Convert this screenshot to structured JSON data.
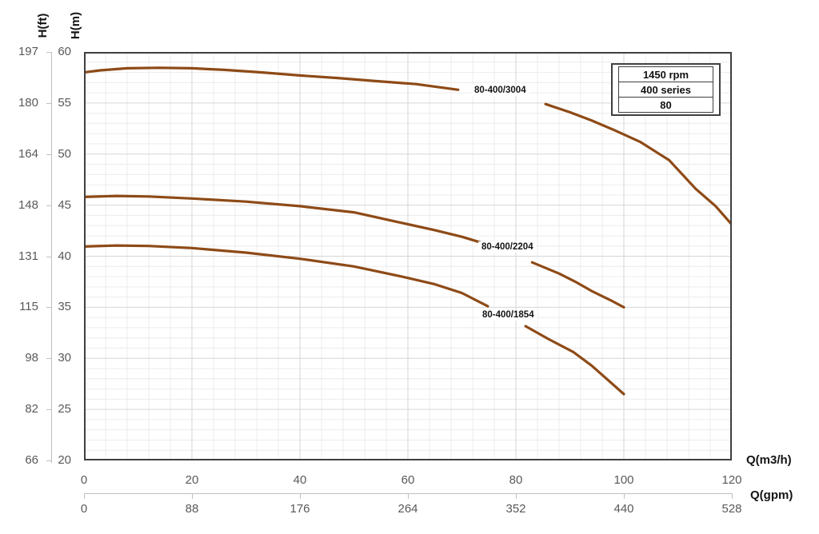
{
  "chart_data": {
    "type": "line",
    "title": "",
    "axes": {
      "y_primary": {
        "title": "H(ft)",
        "ticks": [
          197,
          180,
          164,
          148,
          131,
          115,
          98,
          82,
          66
        ]
      },
      "y_secondary": {
        "title": "H(m)",
        "ticks": [
          60,
          55,
          50,
          45,
          40,
          35,
          30,
          25,
          20
        ],
        "range": [
          20,
          60
        ],
        "major_step": 5,
        "minor_step": 1
      },
      "x_primary": {
        "title": "Q(m3/h)",
        "ticks": [
          0,
          20,
          40,
          60,
          80,
          100,
          120
        ],
        "range": [
          0,
          120
        ],
        "major_step": 20,
        "minor_step": 4
      },
      "x_secondary": {
        "title": "Q(gpm)",
        "ticks": [
          0,
          88,
          176,
          264,
          352,
          440,
          528
        ]
      }
    },
    "legend": {
      "position": "top-right",
      "rows": [
        "1450 rpm",
        "400 series",
        "80"
      ]
    },
    "grid": {
      "major": true,
      "minor": true
    },
    "series": [
      {
        "name": "80-400/3004",
        "segments": [
          [
            [
              0,
              58.0
            ],
            [
              3,
              58.2
            ],
            [
              8,
              58.4
            ],
            [
              14,
              58.45
            ],
            [
              20,
              58.4
            ],
            [
              26,
              58.25
            ],
            [
              33,
              58.0
            ],
            [
              40,
              57.7
            ],
            [
              47,
              57.45
            ],
            [
              54,
              57.15
            ],
            [
              61.5,
              56.85
            ],
            [
              69.3,
              56.3
            ]
          ],
          [
            [
              85.5,
              54.9
            ],
            [
              90,
              54.1
            ],
            [
              94,
              53.3
            ],
            [
              98,
              52.4
            ],
            [
              103,
              51.2
            ],
            [
              106,
              50.2
            ],
            [
              108.4,
              49.4
            ],
            [
              113.3,
              46.6
            ],
            [
              117,
              44.9
            ],
            [
              120,
              43.1
            ]
          ]
        ]
      },
      {
        "name": "80-400/2204",
        "segments": [
          [
            [
              0,
              45.8
            ],
            [
              6,
              45.9
            ],
            [
              12,
              45.85
            ],
            [
              20,
              45.65
            ],
            [
              30,
              45.35
            ],
            [
              40,
              44.9
            ],
            [
              50,
              44.3
            ],
            [
              58.5,
              43.3
            ],
            [
              65,
              42.55
            ],
            [
              70,
              41.9
            ],
            [
              73.5,
              41.35
            ]
          ],
          [
            [
              83,
              39.4
            ],
            [
              88,
              38.3
            ],
            [
              91,
              37.5
            ],
            [
              94,
              36.6
            ],
            [
              97.5,
              35.7
            ],
            [
              100,
              35.0
            ]
          ]
        ]
      },
      {
        "name": "80-400/1854",
        "segments": [
          [
            [
              0,
              40.95
            ],
            [
              6,
              41.05
            ],
            [
              12,
              41.0
            ],
            [
              20,
              40.8
            ],
            [
              30,
              40.35
            ],
            [
              40,
              39.75
            ],
            [
              50,
              39.0
            ],
            [
              58.5,
              38.05
            ],
            [
              65,
              37.25
            ],
            [
              70,
              36.4
            ],
            [
              74.8,
              35.1
            ]
          ],
          [
            [
              81.8,
              33.15
            ],
            [
              86,
              31.9
            ],
            [
              90.7,
              30.6
            ],
            [
              94,
              29.3
            ],
            [
              97,
              27.9
            ],
            [
              100,
              26.5
            ]
          ]
        ]
      }
    ],
    "style": {
      "curve_color": "#8E4A16",
      "grid_minor_color": "#ececec",
      "grid_major_color": "#d6d6d6",
      "plot_border_color": "#3f3f3f",
      "axis_line_color": "#bfbfbf",
      "tick_label_color": "#595959",
      "title_color": "#141414",
      "background": "#ffffff"
    }
  }
}
